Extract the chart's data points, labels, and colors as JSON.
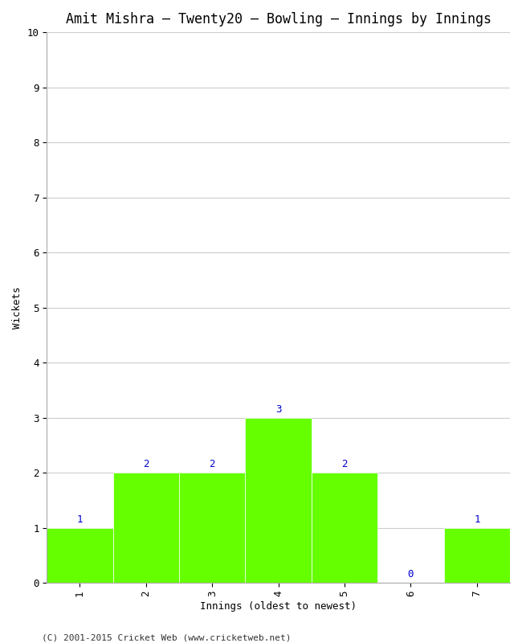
{
  "title": "Amit Mishra – Twenty20 – Bowling – Innings by Innings",
  "xlabel": "Innings (oldest to newest)",
  "ylabel": "Wickets",
  "categories": [
    "1",
    "2",
    "3",
    "4",
    "5",
    "6",
    "7"
  ],
  "values": [
    1,
    2,
    2,
    3,
    2,
    0,
    1
  ],
  "bar_color": "#66ff00",
  "bar_edge_color": "#ffffff",
  "ylim": [
    0,
    10
  ],
  "yticks": [
    0,
    1,
    2,
    3,
    4,
    5,
    6,
    7,
    8,
    9,
    10
  ],
  "title_fontsize": 12,
  "label_fontsize": 9,
  "tick_fontsize": 9,
  "annotation_color": "#0000cc",
  "annotation_fontsize": 9,
  "background_color": "#ffffff",
  "grid_color": "#cccccc",
  "footer": "(C) 2001-2015 Cricket Web (www.cricketweb.net)",
  "footer_fontsize": 8
}
